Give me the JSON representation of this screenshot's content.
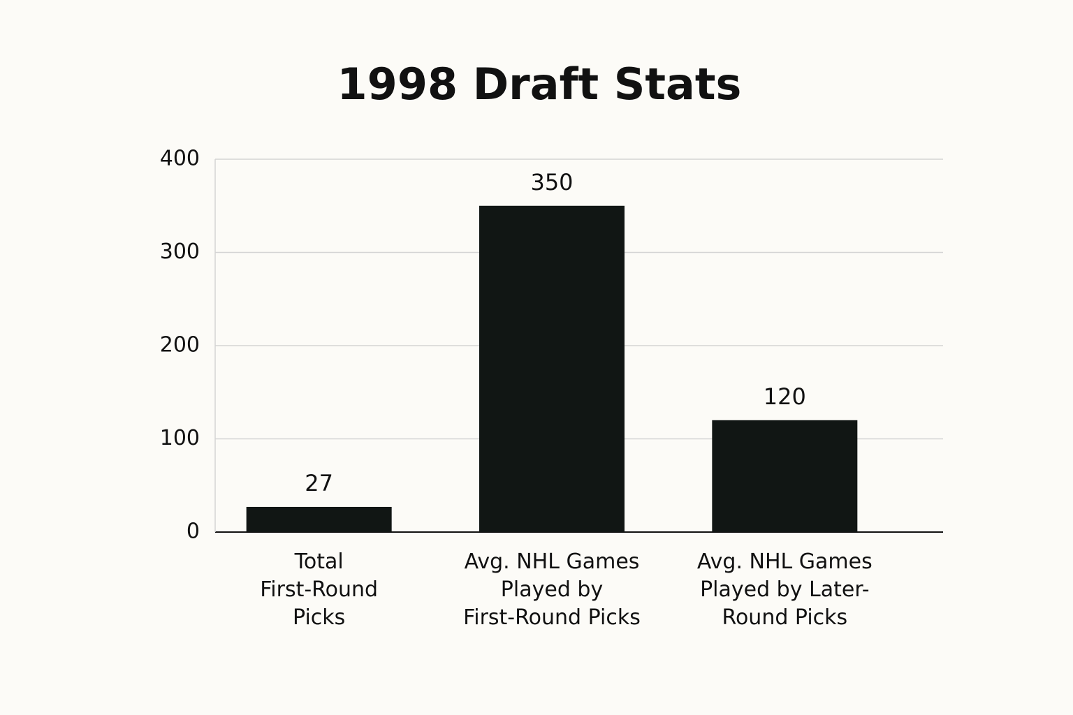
{
  "chart_data": {
    "type": "bar",
    "title": "1998 Draft Stats",
    "categories": [
      "Total\nFirst-Round\nPicks",
      "Avg. NHL Games\nPlayed by\nFirst-Round Picks",
      "Avg. NHL Games\nPlayed by Later-\nRound Picks"
    ],
    "values": [
      27,
      350,
      120
    ],
    "color": "#111614",
    "ylim": [
      0,
      400
    ],
    "yticks": [
      0,
      100,
      200,
      300,
      400
    ],
    "grid": true
  }
}
